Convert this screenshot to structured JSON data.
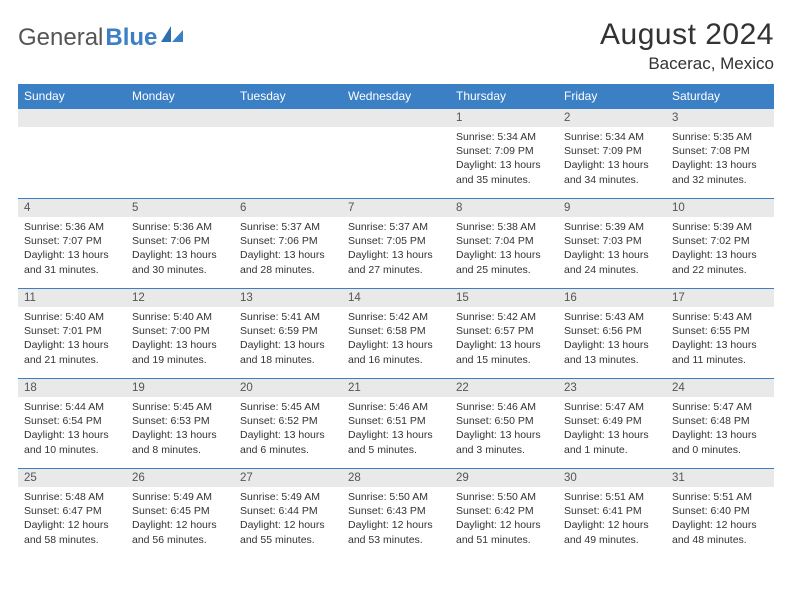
{
  "brand": {
    "general": "General",
    "blue": "Blue"
  },
  "title": "August 2024",
  "location": "Bacerac, Mexico",
  "colors": {
    "accent": "#3b7fc4",
    "daynum_bg": "#e9e9e9",
    "text": "#333333",
    "bg": "#ffffff"
  },
  "weekdays": [
    "Sunday",
    "Monday",
    "Tuesday",
    "Wednesday",
    "Thursday",
    "Friday",
    "Saturday"
  ],
  "weeks": [
    [
      {
        "blank": true
      },
      {
        "blank": true
      },
      {
        "blank": true
      },
      {
        "blank": true
      },
      {
        "n": "1",
        "sr": "Sunrise: 5:34 AM",
        "ss": "Sunset: 7:09 PM",
        "dl": "Daylight: 13 hours and 35 minutes."
      },
      {
        "n": "2",
        "sr": "Sunrise: 5:34 AM",
        "ss": "Sunset: 7:09 PM",
        "dl": "Daylight: 13 hours and 34 minutes."
      },
      {
        "n": "3",
        "sr": "Sunrise: 5:35 AM",
        "ss": "Sunset: 7:08 PM",
        "dl": "Daylight: 13 hours and 32 minutes."
      }
    ],
    [
      {
        "n": "4",
        "sr": "Sunrise: 5:36 AM",
        "ss": "Sunset: 7:07 PM",
        "dl": "Daylight: 13 hours and 31 minutes."
      },
      {
        "n": "5",
        "sr": "Sunrise: 5:36 AM",
        "ss": "Sunset: 7:06 PM",
        "dl": "Daylight: 13 hours and 30 minutes."
      },
      {
        "n": "6",
        "sr": "Sunrise: 5:37 AM",
        "ss": "Sunset: 7:06 PM",
        "dl": "Daylight: 13 hours and 28 minutes."
      },
      {
        "n": "7",
        "sr": "Sunrise: 5:37 AM",
        "ss": "Sunset: 7:05 PM",
        "dl": "Daylight: 13 hours and 27 minutes."
      },
      {
        "n": "8",
        "sr": "Sunrise: 5:38 AM",
        "ss": "Sunset: 7:04 PM",
        "dl": "Daylight: 13 hours and 25 minutes."
      },
      {
        "n": "9",
        "sr": "Sunrise: 5:39 AM",
        "ss": "Sunset: 7:03 PM",
        "dl": "Daylight: 13 hours and 24 minutes."
      },
      {
        "n": "10",
        "sr": "Sunrise: 5:39 AM",
        "ss": "Sunset: 7:02 PM",
        "dl": "Daylight: 13 hours and 22 minutes."
      }
    ],
    [
      {
        "n": "11",
        "sr": "Sunrise: 5:40 AM",
        "ss": "Sunset: 7:01 PM",
        "dl": "Daylight: 13 hours and 21 minutes."
      },
      {
        "n": "12",
        "sr": "Sunrise: 5:40 AM",
        "ss": "Sunset: 7:00 PM",
        "dl": "Daylight: 13 hours and 19 minutes."
      },
      {
        "n": "13",
        "sr": "Sunrise: 5:41 AM",
        "ss": "Sunset: 6:59 PM",
        "dl": "Daylight: 13 hours and 18 minutes."
      },
      {
        "n": "14",
        "sr": "Sunrise: 5:42 AM",
        "ss": "Sunset: 6:58 PM",
        "dl": "Daylight: 13 hours and 16 minutes."
      },
      {
        "n": "15",
        "sr": "Sunrise: 5:42 AM",
        "ss": "Sunset: 6:57 PM",
        "dl": "Daylight: 13 hours and 15 minutes."
      },
      {
        "n": "16",
        "sr": "Sunrise: 5:43 AM",
        "ss": "Sunset: 6:56 PM",
        "dl": "Daylight: 13 hours and 13 minutes."
      },
      {
        "n": "17",
        "sr": "Sunrise: 5:43 AM",
        "ss": "Sunset: 6:55 PM",
        "dl": "Daylight: 13 hours and 11 minutes."
      }
    ],
    [
      {
        "n": "18",
        "sr": "Sunrise: 5:44 AM",
        "ss": "Sunset: 6:54 PM",
        "dl": "Daylight: 13 hours and 10 minutes."
      },
      {
        "n": "19",
        "sr": "Sunrise: 5:45 AM",
        "ss": "Sunset: 6:53 PM",
        "dl": "Daylight: 13 hours and 8 minutes."
      },
      {
        "n": "20",
        "sr": "Sunrise: 5:45 AM",
        "ss": "Sunset: 6:52 PM",
        "dl": "Daylight: 13 hours and 6 minutes."
      },
      {
        "n": "21",
        "sr": "Sunrise: 5:46 AM",
        "ss": "Sunset: 6:51 PM",
        "dl": "Daylight: 13 hours and 5 minutes."
      },
      {
        "n": "22",
        "sr": "Sunrise: 5:46 AM",
        "ss": "Sunset: 6:50 PM",
        "dl": "Daylight: 13 hours and 3 minutes."
      },
      {
        "n": "23",
        "sr": "Sunrise: 5:47 AM",
        "ss": "Sunset: 6:49 PM",
        "dl": "Daylight: 13 hours and 1 minute."
      },
      {
        "n": "24",
        "sr": "Sunrise: 5:47 AM",
        "ss": "Sunset: 6:48 PM",
        "dl": "Daylight: 13 hours and 0 minutes."
      }
    ],
    [
      {
        "n": "25",
        "sr": "Sunrise: 5:48 AM",
        "ss": "Sunset: 6:47 PM",
        "dl": "Daylight: 12 hours and 58 minutes."
      },
      {
        "n": "26",
        "sr": "Sunrise: 5:49 AM",
        "ss": "Sunset: 6:45 PM",
        "dl": "Daylight: 12 hours and 56 minutes."
      },
      {
        "n": "27",
        "sr": "Sunrise: 5:49 AM",
        "ss": "Sunset: 6:44 PM",
        "dl": "Daylight: 12 hours and 55 minutes."
      },
      {
        "n": "28",
        "sr": "Sunrise: 5:50 AM",
        "ss": "Sunset: 6:43 PM",
        "dl": "Daylight: 12 hours and 53 minutes."
      },
      {
        "n": "29",
        "sr": "Sunrise: 5:50 AM",
        "ss": "Sunset: 6:42 PM",
        "dl": "Daylight: 12 hours and 51 minutes."
      },
      {
        "n": "30",
        "sr": "Sunrise: 5:51 AM",
        "ss": "Sunset: 6:41 PM",
        "dl": "Daylight: 12 hours and 49 minutes."
      },
      {
        "n": "31",
        "sr": "Sunrise: 5:51 AM",
        "ss": "Sunset: 6:40 PM",
        "dl": "Daylight: 12 hours and 48 minutes."
      }
    ]
  ]
}
